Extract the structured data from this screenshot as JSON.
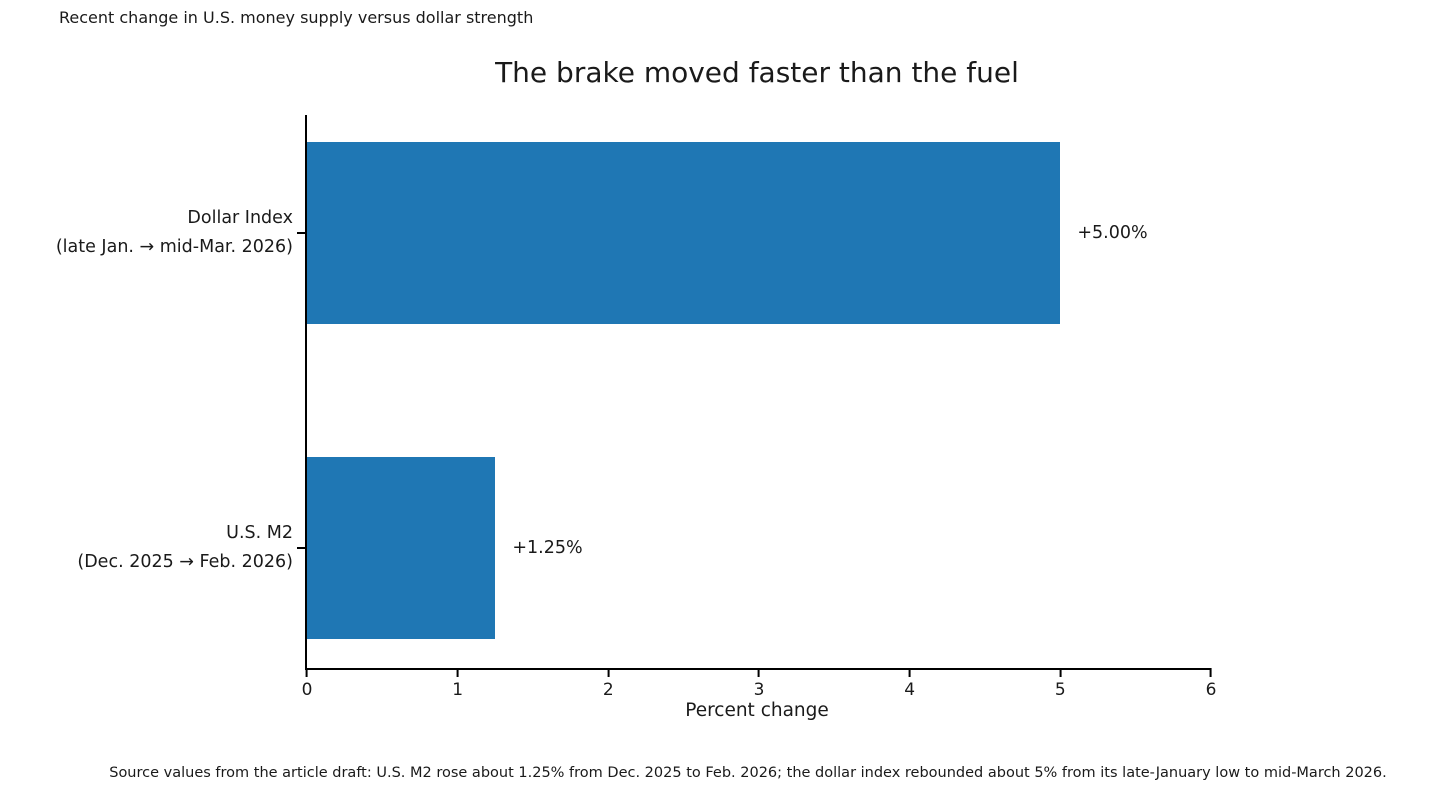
{
  "figure": {
    "note": "Recent change in U.S. money supply versus dollar strength",
    "footnote": "Source values from the article draft: U.S. M2 rose about 1.25% from Dec. 2025 to Feb. 2026; the dollar index rebounded about 5% from its late-January low to mid-March 2026."
  },
  "chart_data": {
    "type": "bar",
    "orientation": "horizontal",
    "title": "The brake moved faster than the fuel",
    "categories": [
      [
        "Dollar Index",
        "(late Jan. → mid-Mar. 2026)"
      ],
      [
        "U.S. M2",
        "(Dec. 2025 → Feb. 2026)"
      ]
    ],
    "values": [
      5.0,
      1.25
    ],
    "bar_labels": [
      "+5.00%",
      "+1.25%"
    ],
    "xlabel": "Percent change",
    "xlim": [
      0,
      6
    ],
    "x_ticks": [
      0,
      1,
      2,
      3,
      4,
      5,
      6
    ],
    "bar_color": "#1f77b4",
    "axis_color": "#000000",
    "grid": false,
    "legend": null
  }
}
